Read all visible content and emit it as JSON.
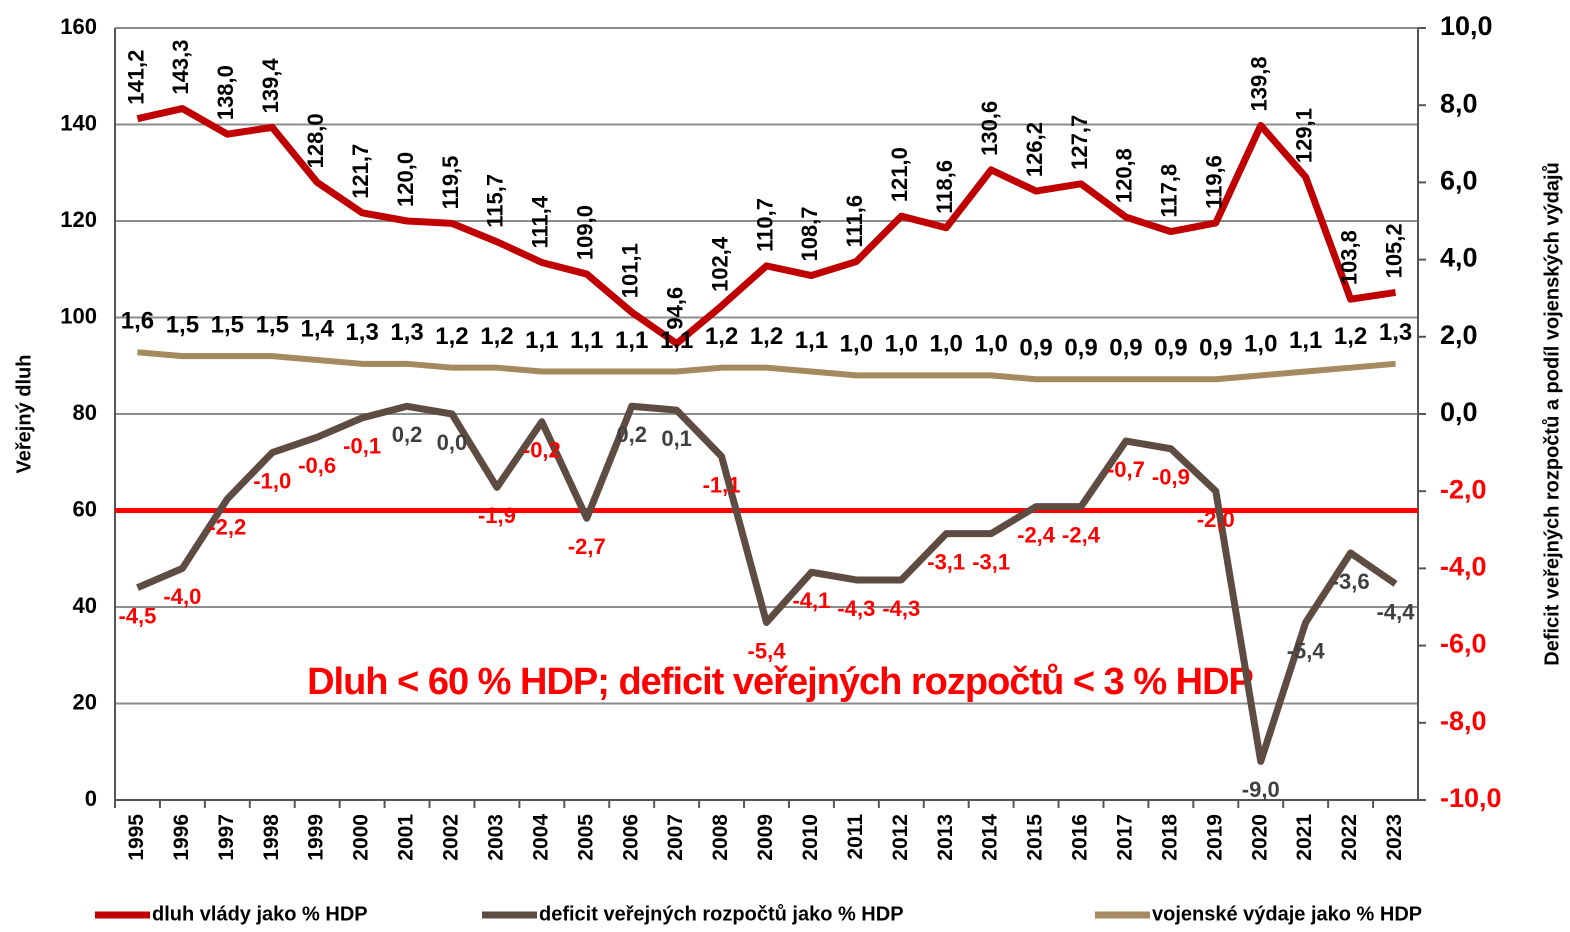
{
  "chart_data": {
    "type": "line",
    "categories": [
      "1995",
      "1996",
      "1997",
      "1998",
      "1999",
      "2000",
      "2001",
      "2002",
      "2003",
      "2004",
      "2005",
      "2006",
      "2007",
      "2008",
      "2009",
      "2010",
      "2011",
      "2012",
      "2013",
      "2014",
      "2015",
      "2016",
      "2017",
      "2018",
      "2019",
      "2020",
      "2021",
      "2022",
      "2023"
    ],
    "series": [
      {
        "name": "dluh vlády jako % HDP",
        "color": "#c00000",
        "axis": "y",
        "values": [
          141.2,
          143.3,
          138.0,
          139.4,
          128.0,
          121.7,
          120.0,
          119.5,
          115.7,
          111.4,
          109.0,
          101.1,
          94.6,
          102.4,
          110.7,
          108.7,
          111.6,
          121.0,
          118.6,
          130.6,
          126.2,
          127.7,
          120.8,
          117.8,
          119.6,
          139.8,
          129.1,
          103.8,
          105.2
        ],
        "value_labels": [
          "141,2",
          "143,3",
          "138,0",
          "139,4",
          "128,0",
          "121,7",
          "120,0",
          "119,5",
          "115,7",
          "111,4",
          "109,0",
          "101,1",
          "94,6",
          "102,4",
          "110,7",
          "108,7",
          "111,6",
          "121,0",
          "118,6",
          "130,6",
          "126,2",
          "127,7",
          "120,8",
          "117,8",
          "119,6",
          "139,8",
          "129,1",
          "103,8",
          "105,2"
        ]
      },
      {
        "name": "deficit veřejných rozpočtů jako % HDP",
        "color": "#5e4c42",
        "axis": "y2",
        "values": [
          -4.5,
          -4.0,
          -2.2,
          -1.0,
          -0.6,
          -0.1,
          0.2,
          0.0,
          -1.9,
          -0.2,
          -2.7,
          0.2,
          0.1,
          -1.1,
          -5.4,
          -4.1,
          -4.3,
          -4.3,
          -3.1,
          -3.1,
          -2.4,
          -2.4,
          -0.7,
          -0.9,
          -2.0,
          -9.0,
          -5.4,
          -3.6,
          -4.4
        ],
        "value_labels": [
          "-4,5",
          "-4,0",
          "-2,2",
          "-1,0",
          "-0,6",
          "-0,1",
          "0,2",
          "0,0",
          "-1,9",
          "-0,2",
          "-2,7",
          "0,2",
          "0,1",
          "-1,1",
          "-5,4",
          "-4,1",
          "-4,3",
          "-4,3",
          "-3,1",
          "-3,1",
          "-2,4",
          "-2,4",
          "-0,7",
          "-0,9",
          "-2,0",
          "-9,0",
          "-5,4",
          "-3,6",
          "-4,4"
        ],
        "label_colors": [
          "#ff0000",
          "#ff0000",
          "#ff0000",
          "#ff0000",
          "#ff0000",
          "#ff0000",
          "#404040",
          "#404040",
          "#ff0000",
          "#ff0000",
          "#ff0000",
          "#404040",
          "#404040",
          "#ff0000",
          "#ff0000",
          "#ff0000",
          "#ff0000",
          "#ff0000",
          "#ff0000",
          "#ff0000",
          "#ff0000",
          "#ff0000",
          "#ff0000",
          "#ff0000",
          "#ff0000",
          "#404040",
          "#404040",
          "#404040",
          "#404040"
        ]
      },
      {
        "name": "vojenské výdaje jako % HDP",
        "color": "#a48a5e",
        "axis": "y2",
        "values": [
          1.6,
          1.5,
          1.5,
          1.5,
          1.4,
          1.3,
          1.3,
          1.2,
          1.2,
          1.1,
          1.1,
          1.1,
          1.1,
          1.2,
          1.2,
          1.1,
          1.0,
          1.0,
          1.0,
          1.0,
          0.9,
          0.9,
          0.9,
          0.9,
          0.9,
          1.0,
          1.1,
          1.2,
          1.3
        ],
        "value_labels": [
          "1,6",
          "1,5",
          "1,5",
          "1,5",
          "1,4",
          "1,3",
          "1,3",
          "1,2",
          "1,2",
          "1,1",
          "1,1",
          "1,1",
          "1,1",
          "1,2",
          "1,2",
          "1,1",
          "1,0",
          "1,0",
          "1,0",
          "1,0",
          "0,9",
          "0,9",
          "0,9",
          "0,9",
          "0,9",
          "1,0",
          "1,1",
          "1,2",
          "1,3"
        ]
      }
    ],
    "ylabel": "Veřejný dluh",
    "y2label": "Deficit veřejných rozpočtů a podíl vojenských výdajů",
    "ylim": [
      0,
      160
    ],
    "yticks": [
      0,
      20,
      40,
      60,
      80,
      100,
      120,
      140,
      160
    ],
    "y2lim": [
      -10,
      10
    ],
    "y2ticks": [
      {
        "value": -10,
        "label": "-10,0"
      },
      {
        "value": -8,
        "label": "-8,0"
      },
      {
        "value": -6,
        "label": "-6,0"
      },
      {
        "value": -4,
        "label": "-4,0"
      },
      {
        "value": -2,
        "label": "-2,0"
      },
      {
        "value": 0,
        "label": "0,0"
      },
      {
        "value": 2,
        "label": "2,0"
      },
      {
        "value": 4,
        "label": "4,0"
      },
      {
        "value": 6,
        "label": "6,0"
      },
      {
        "value": 8,
        "label": "8,0"
      },
      {
        "value": 10,
        "label": "10,0"
      }
    ],
    "reference_line": {
      "value": 60,
      "color": "#ff0000"
    },
    "annotation": "Dluh < 60 % HDP; deficit veřejných rozpočtů < 3 % HDP",
    "grid": true,
    "legend": "bottom"
  }
}
